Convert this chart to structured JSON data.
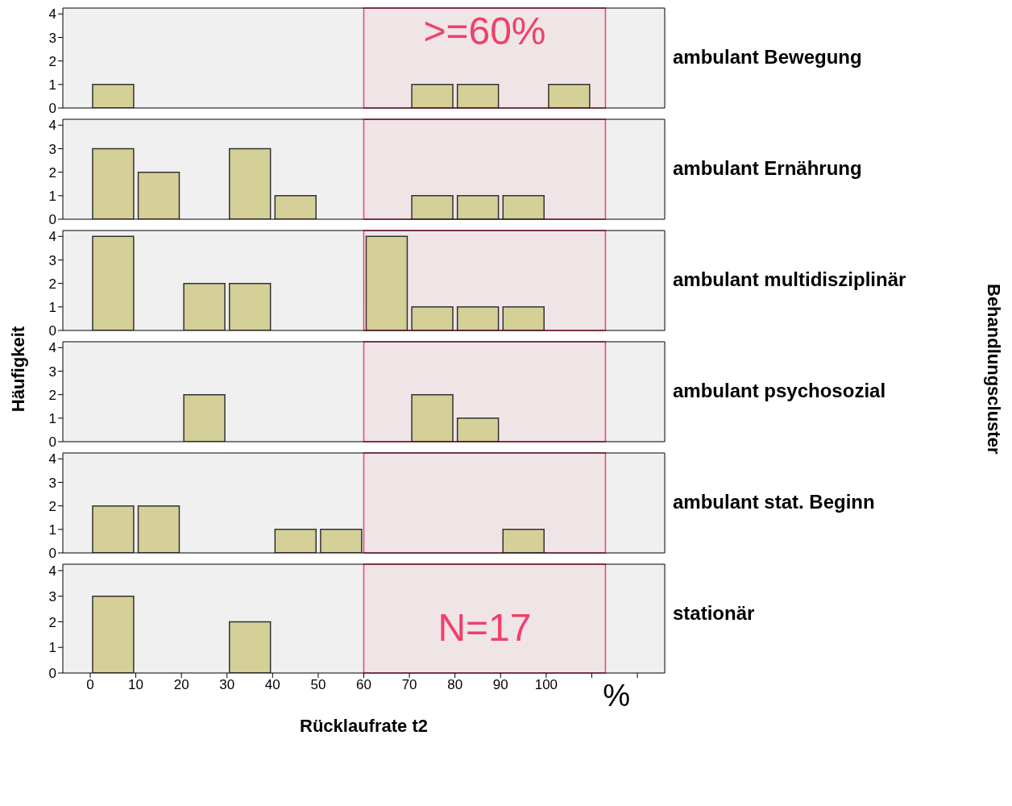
{
  "chart_data": [
    {
      "type": "histogram",
      "title": "ambulant Bewegung",
      "bins": [
        0,
        10,
        20,
        30,
        40,
        50,
        60,
        70,
        80,
        90,
        100,
        110
      ],
      "values": [
        1,
        0,
        0,
        0,
        0,
        0,
        0,
        1,
        1,
        0,
        1
      ],
      "color": "#d5cf98",
      "xlim": [
        -6,
        126
      ],
      "ylim": [
        0,
        4.25
      ],
      "yticks": [
        0,
        1,
        2,
        3,
        4
      ],
      "tick_labels": "y",
      "bands": [
        {
          "axis": "x",
          "from": 60,
          "to": 113,
          "label": ">=60%",
          "color": "#f0406a"
        }
      ]
    },
    {
      "type": "histogram",
      "title": "ambulant Ernährung",
      "bins": [
        0,
        10,
        20,
        30,
        40,
        50,
        60,
        70,
        80,
        90,
        100,
        110
      ],
      "values": [
        3,
        2,
        0,
        3,
        1,
        0,
        0,
        1,
        1,
        1,
        0
      ],
      "color": "#d5cf98",
      "xlim": [
        -6,
        126
      ],
      "ylim": [
        0,
        4.25
      ],
      "yticks": [
        0,
        1,
        2,
        3,
        4
      ],
      "tick_labels": "y",
      "bands": [
        {
          "axis": "x",
          "from": 60,
          "to": 113,
          "color": "#f0406a"
        }
      ]
    },
    {
      "type": "histogram",
      "title": "ambulant multidisziplinär",
      "ylabel": "Häufigkeit",
      "y2label": "Behandlungscluster",
      "bins": [
        0,
        10,
        20,
        30,
        40,
        50,
        60,
        70,
        80,
        90,
        100,
        110
      ],
      "values": [
        4,
        0,
        2,
        2,
        0,
        0,
        4,
        1,
        1,
        1,
        0
      ],
      "color": "#d5cf98",
      "xlim": [
        -6,
        126
      ],
      "ylim": [
        0,
        4.25
      ],
      "yticks": [
        0,
        1,
        2,
        3,
        4
      ],
      "tick_labels": "y",
      "bands": [
        {
          "axis": "x",
          "from": 60,
          "to": 113,
          "color": "#f0406a"
        }
      ]
    },
    {
      "type": "histogram",
      "title": "ambulant psychosozial",
      "bins": [
        0,
        10,
        20,
        30,
        40,
        50,
        60,
        70,
        80,
        90,
        100,
        110
      ],
      "values": [
        0,
        0,
        2,
        0,
        0,
        0,
        0,
        2,
        1,
        0,
        0
      ],
      "color": "#d5cf98",
      "xlim": [
        -6,
        126
      ],
      "ylim": [
        0,
        4.25
      ],
      "yticks": [
        0,
        1,
        2,
        3,
        4
      ],
      "tick_labels": "y",
      "bands": [
        {
          "axis": "x",
          "from": 60,
          "to": 113,
          "color": "#f0406a"
        }
      ]
    },
    {
      "type": "histogram",
      "title": "ambulant stat. Beginn",
      "bins": [
        0,
        10,
        20,
        30,
        40,
        50,
        60,
        70,
        80,
        90,
        100,
        110
      ],
      "values": [
        2,
        2,
        0,
        0,
        1,
        1,
        0,
        0,
        0,
        1,
        0
      ],
      "color": "#d5cf98",
      "xlim": [
        -6,
        126
      ],
      "ylim": [
        0,
        4.25
      ],
      "yticks": [
        0,
        1,
        2,
        3,
        4
      ],
      "tick_labels": "y",
      "bands": [
        {
          "axis": "x",
          "from": 60,
          "to": 113,
          "color": "#f0406a"
        }
      ]
    },
    {
      "type": "histogram",
      "title": "stationär",
      "xlabel": "Rücklaufrate t2",
      "annotations": [
        "%"
      ],
      "bins": [
        0,
        10,
        20,
        30,
        40,
        50,
        60,
        70,
        80,
        90,
        100,
        110
      ],
      "values": [
        3,
        0,
        0,
        2,
        0,
        0,
        0,
        0,
        0,
        0,
        0
      ],
      "color": "#d5cf98",
      "xlim": [
        -6,
        126
      ],
      "ylim": [
        0,
        4.25
      ],
      "yticks": [
        0,
        1,
        2,
        3,
        4
      ],
      "xticks": [
        0,
        10,
        20,
        30,
        40,
        50,
        60,
        70,
        80,
        90,
        100,
        {
          "value": 110,
          "label": null
        },
        {
          "value": 120,
          "label": null
        }
      ],
      "bands": [
        {
          "axis": "x",
          "from": 60,
          "to": 113,
          "label": "N=17",
          "color": "#f0406a"
        }
      ]
    }
  ]
}
